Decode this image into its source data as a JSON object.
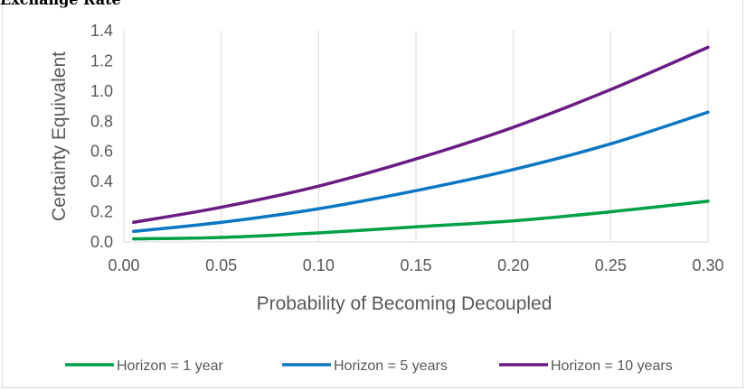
{
  "heading": "Exchange Rate",
  "chart_data": {
    "type": "line",
    "title": "",
    "xlabel": "Probability of Becoming Decoupled",
    "ylabel": "Certainty Equivalent",
    "xlim": [
      0,
      0.3
    ],
    "ylim": [
      0,
      1.4
    ],
    "x_ticks": [
      "0.00",
      "0.05",
      "0.10",
      "0.15",
      "0.20",
      "0.25",
      "0.30"
    ],
    "y_ticks": [
      "0.0",
      "0.2",
      "0.4",
      "0.6",
      "0.8",
      "1.0",
      "1.2",
      "1.4"
    ],
    "grid": "vertical",
    "legend_position": "bottom",
    "series": [
      {
        "name": "Horizon = 1 year",
        "color": "#00a046",
        "x": [
          0.005,
          0.05,
          0.1,
          0.15,
          0.2,
          0.25,
          0.3
        ],
        "y": [
          0.02,
          0.03,
          0.06,
          0.1,
          0.14,
          0.2,
          0.27
        ]
      },
      {
        "name": "Horizon = 5 years",
        "color": "#0b77c2",
        "x": [
          0.005,
          0.05,
          0.1,
          0.15,
          0.2,
          0.25,
          0.3
        ],
        "y": [
          0.07,
          0.13,
          0.22,
          0.34,
          0.48,
          0.65,
          0.86
        ]
      },
      {
        "name": "Horizon = 10 years",
        "color": "#6a1b84",
        "x": [
          0.005,
          0.05,
          0.1,
          0.15,
          0.2,
          0.25,
          0.3
        ],
        "y": [
          0.13,
          0.23,
          0.37,
          0.55,
          0.76,
          1.01,
          1.29
        ]
      }
    ]
  }
}
